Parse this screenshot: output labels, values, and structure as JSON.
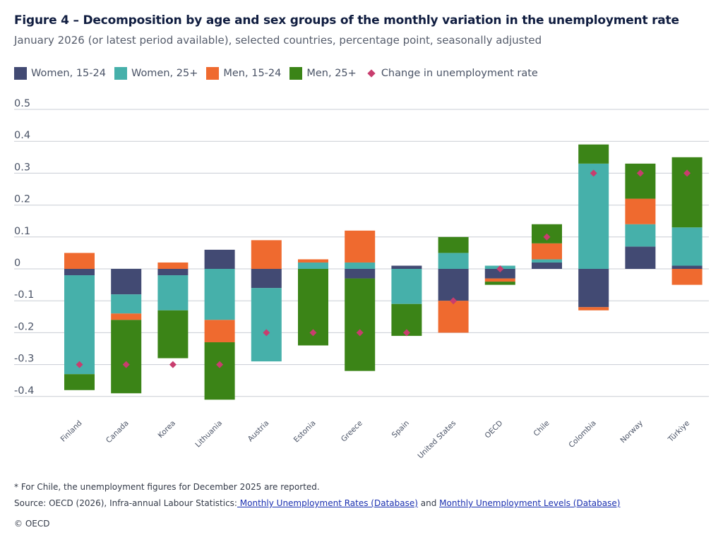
{
  "title": "Figure 4 – Decomposition by age and sex groups of the monthly variation in the unemployment rate",
  "subtitle": "January 2026 (or latest period available), selected countries, percentage point, seasonally adjusted",
  "legend": {
    "women_15_24": "Women, 15-24",
    "women_25": "Women, 25+",
    "men_15_24": "Men, 15-24",
    "men_25": "Men, 25+",
    "change": "Change in unemployment rate"
  },
  "colors": {
    "women_15_24": "#424a73",
    "women_25": "#46b0aa",
    "men_15_24": "#ef6a2f",
    "men_25": "#3b8417",
    "change": "#c83d6e",
    "grid": "#c9cdd4",
    "tick": "#4a5366"
  },
  "chart_data": {
    "type": "bar",
    "stacked": true,
    "ylim": [
      -0.4,
      0.5
    ],
    "yticks": [
      0.5,
      0.4,
      0.3,
      0.2,
      0.1,
      0,
      -0.1,
      -0.2,
      -0.3,
      -0.4
    ],
    "ytick_labels": [
      "0.5",
      "0.4",
      "0.3",
      "0.2",
      "0.1",
      "0",
      "-0.1",
      "-0.2",
      "-0.3",
      "-0.4"
    ],
    "categories": [
      "Finland",
      "Canada",
      "Korea",
      "Lithuania",
      "Austria",
      "Estonia",
      "Greece",
      "Spain",
      "United States",
      "OECD",
      "Chile",
      "Colombia",
      "Norway",
      "Türkiye"
    ],
    "series": [
      {
        "name": "Women, 15-24",
        "key": "women_15_24",
        "values": [
          -0.02,
          -0.08,
          -0.02,
          0.06,
          -0.06,
          0.0,
          -0.03,
          0.01,
          -0.1,
          -0.03,
          0.02,
          -0.12,
          0.07,
          0.01
        ]
      },
      {
        "name": "Women, 25+",
        "key": "women_25",
        "values": [
          -0.31,
          -0.06,
          -0.11,
          -0.16,
          -0.23,
          0.02,
          0.02,
          -0.11,
          0.05,
          0.01,
          0.01,
          0.33,
          0.07,
          0.12
        ]
      },
      {
        "name": "Men, 15-24",
        "key": "men_15_24",
        "values": [
          0.05,
          -0.02,
          0.02,
          -0.07,
          0.09,
          0.01,
          0.1,
          0.0,
          -0.1,
          -0.01,
          0.05,
          -0.01,
          0.08,
          -0.05
        ]
      },
      {
        "name": "Men, 25+",
        "key": "men_25",
        "values": [
          -0.05,
          -0.23,
          -0.15,
          -0.18,
          0.0,
          -0.24,
          -0.29,
          -0.1,
          0.05,
          -0.01,
          0.06,
          0.06,
          0.11,
          0.22
        ]
      }
    ],
    "change": {
      "name": "Change in unemployment rate",
      "values": [
        -0.3,
        -0.3,
        -0.3,
        -0.3,
        -0.2,
        -0.2,
        -0.2,
        -0.2,
        -0.1,
        0.0,
        0.1,
        0.3,
        0.3,
        0.3
      ]
    }
  },
  "footnote": "* For Chile, the unemployment figures for December 2025 are reported.",
  "source": {
    "prefix": "Source: OECD (2026), Infra-annual Labour Statistics:",
    "link1": " Monthly Unemployment Rates (Database)",
    "middle": " and ",
    "link2": "Monthly Unemployment Levels (Database)"
  },
  "copyright": "© OECD"
}
